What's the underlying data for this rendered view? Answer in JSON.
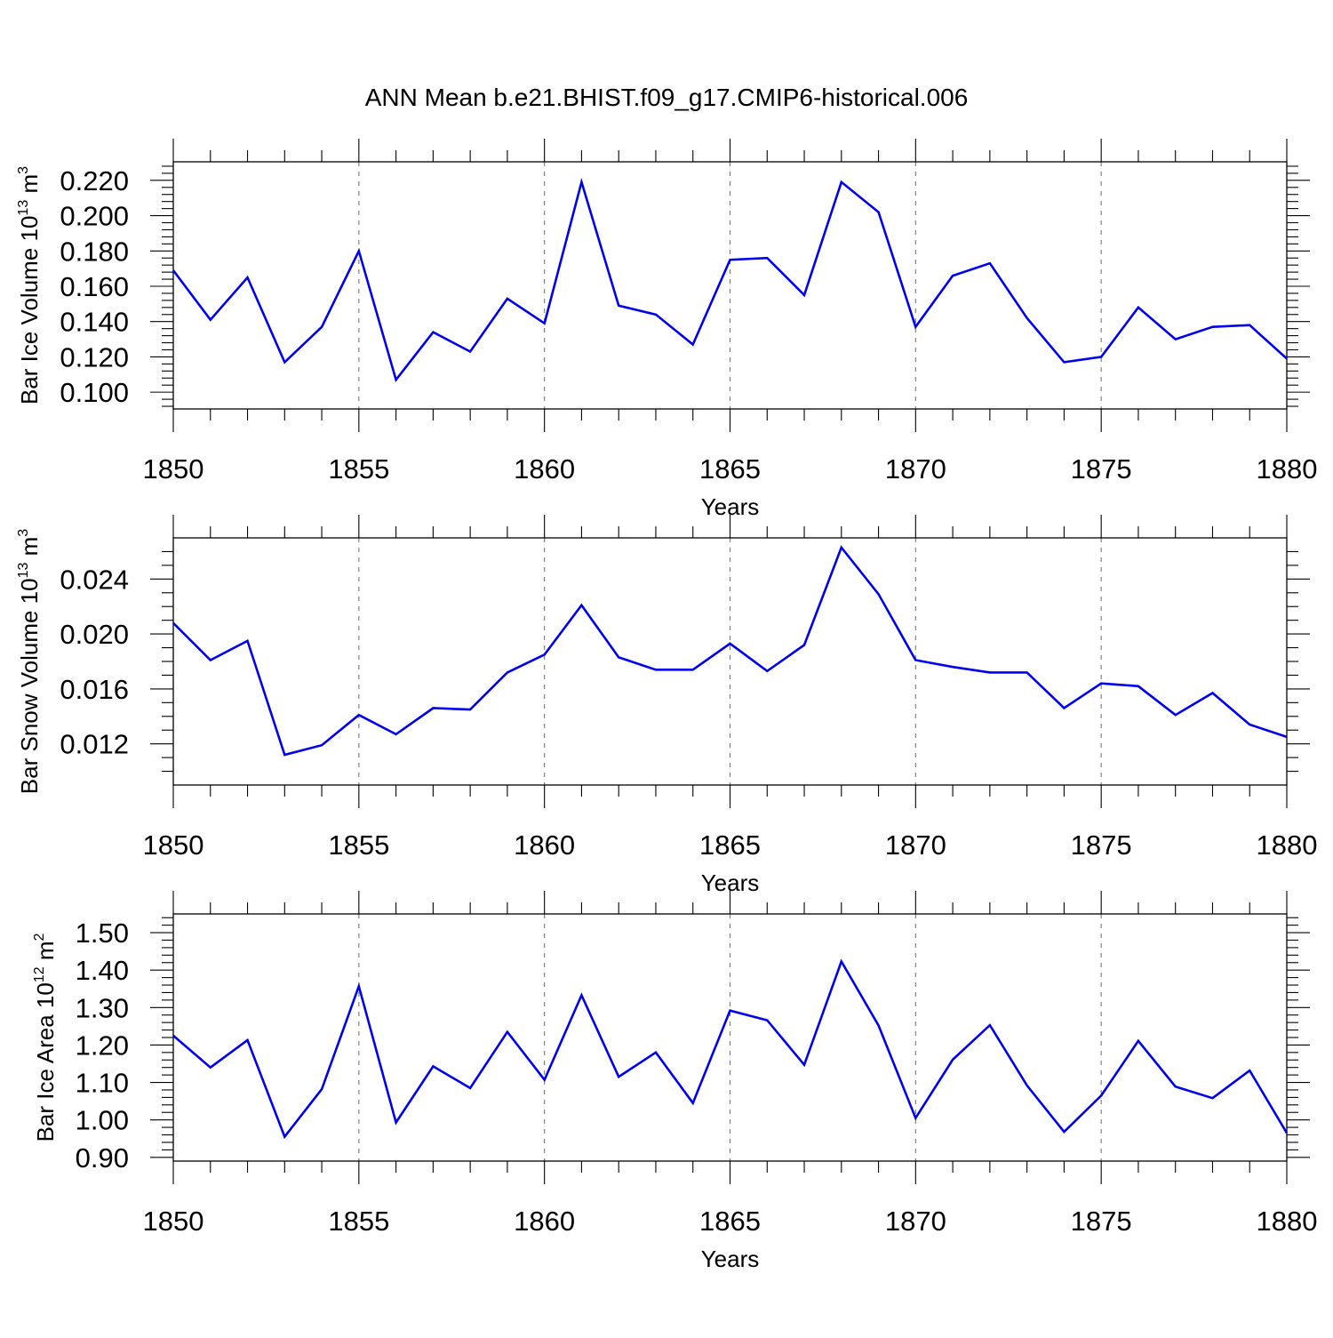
{
  "title": "ANN Mean b.e21.BHIST.f09_g17.CMIP6-historical.006",
  "colors": {
    "series": "#0000ee",
    "grid": "#777777",
    "axes": "#000000"
  },
  "chart_data": [
    {
      "type": "line",
      "ylabel": "Bar Ice Volume 10",
      "ylabel_sup": "13",
      "ylabel_unit": " m",
      "ylabel_unit_sup": "3",
      "xlabel": "Years",
      "xlim": [
        1850,
        1880
      ],
      "ylim": [
        0.0905,
        0.2305
      ],
      "x_ticks": [
        1850,
        1855,
        1860,
        1865,
        1870,
        1875,
        1880
      ],
      "y_ticks": [
        0.1,
        0.12,
        0.14,
        0.16,
        0.18,
        0.2,
        0.22
      ],
      "y_tick_labels": [
        "0.100",
        "0.120",
        "0.140",
        "0.160",
        "0.180",
        "0.200",
        "0.220"
      ],
      "y_minor_step": 0.004,
      "grid": "dashed vertical at major x ticks",
      "x": [
        1850,
        1851,
        1852,
        1853,
        1854,
        1855,
        1856,
        1857,
        1858,
        1859,
        1860,
        1861,
        1862,
        1863,
        1864,
        1865,
        1866,
        1867,
        1868,
        1869,
        1870,
        1871,
        1872,
        1873,
        1874,
        1875,
        1876,
        1877,
        1878,
        1879,
        1880
      ],
      "values": [
        0.169,
        0.141,
        0.165,
        0.117,
        0.137,
        0.18,
        0.107,
        0.134,
        0.123,
        0.153,
        0.139,
        0.219,
        0.149,
        0.144,
        0.127,
        0.175,
        0.176,
        0.155,
        0.219,
        0.202,
        0.137,
        0.166,
        0.173,
        0.142,
        0.117,
        0.12,
        0.148,
        0.13,
        0.137,
        0.138,
        0.119
      ]
    },
    {
      "type": "line",
      "ylabel": "Bar Snow Volume 10",
      "ylabel_sup": "13",
      "ylabel_unit": " m",
      "ylabel_unit_sup": "3",
      "xlabel": "Years",
      "xlim": [
        1850,
        1880
      ],
      "ylim": [
        0.009,
        0.027
      ],
      "x_ticks": [
        1850,
        1855,
        1860,
        1865,
        1870,
        1875,
        1880
      ],
      "y_ticks": [
        0.012,
        0.016,
        0.02,
        0.024
      ],
      "y_tick_labels": [
        "0.012",
        "0.016",
        "0.020",
        "0.024"
      ],
      "y_minor_step": 0.001,
      "grid": "dashed vertical at major x ticks",
      "x": [
        1850,
        1851,
        1852,
        1853,
        1854,
        1855,
        1856,
        1857,
        1858,
        1859,
        1860,
        1861,
        1862,
        1863,
        1864,
        1865,
        1866,
        1867,
        1868,
        1869,
        1870,
        1871,
        1872,
        1873,
        1874,
        1875,
        1876,
        1877,
        1878,
        1879,
        1880
      ],
      "values": [
        0.0208,
        0.0181,
        0.0195,
        0.0112,
        0.0119,
        0.0141,
        0.0127,
        0.0146,
        0.0145,
        0.0172,
        0.0185,
        0.0221,
        0.0183,
        0.0174,
        0.0174,
        0.0193,
        0.0173,
        0.0192,
        0.0263,
        0.0229,
        0.0181,
        0.0176,
        0.0172,
        0.0172,
        0.0146,
        0.0164,
        0.0162,
        0.0141,
        0.0157,
        0.0134,
        0.0125
      ]
    },
    {
      "type": "line",
      "ylabel": "Bar Ice Area 10",
      "ylabel_sup": "12",
      "ylabel_unit": " m",
      "ylabel_unit_sup": "2",
      "xlabel": "Years",
      "xlim": [
        1850,
        1880
      ],
      "ylim": [
        0.89,
        1.55
      ],
      "x_ticks": [
        1850,
        1855,
        1860,
        1865,
        1870,
        1875,
        1880
      ],
      "y_ticks": [
        0.9,
        1.0,
        1.1,
        1.2,
        1.3,
        1.4,
        1.5
      ],
      "y_tick_labels": [
        "0.90",
        "1.00",
        "1.10",
        "1.20",
        "1.30",
        "1.40",
        "1.50"
      ],
      "y_minor_step": 0.02,
      "grid": "dashed vertical at major x ticks",
      "x": [
        1850,
        1851,
        1852,
        1853,
        1854,
        1855,
        1856,
        1857,
        1858,
        1859,
        1860,
        1861,
        1862,
        1863,
        1864,
        1865,
        1866,
        1867,
        1868,
        1869,
        1870,
        1871,
        1872,
        1873,
        1874,
        1875,
        1876,
        1877,
        1878,
        1879,
        1880
      ],
      "values": [
        1.225,
        1.14,
        1.213,
        0.955,
        1.082,
        1.357,
        0.993,
        1.143,
        1.085,
        1.235,
        1.107,
        1.333,
        1.115,
        1.18,
        1.045,
        1.292,
        1.266,
        1.147,
        1.423,
        1.252,
        1.005,
        1.161,
        1.253,
        1.092,
        0.968,
        1.065,
        1.211,
        1.089,
        1.058,
        1.132,
        0.965
      ]
    }
  ]
}
